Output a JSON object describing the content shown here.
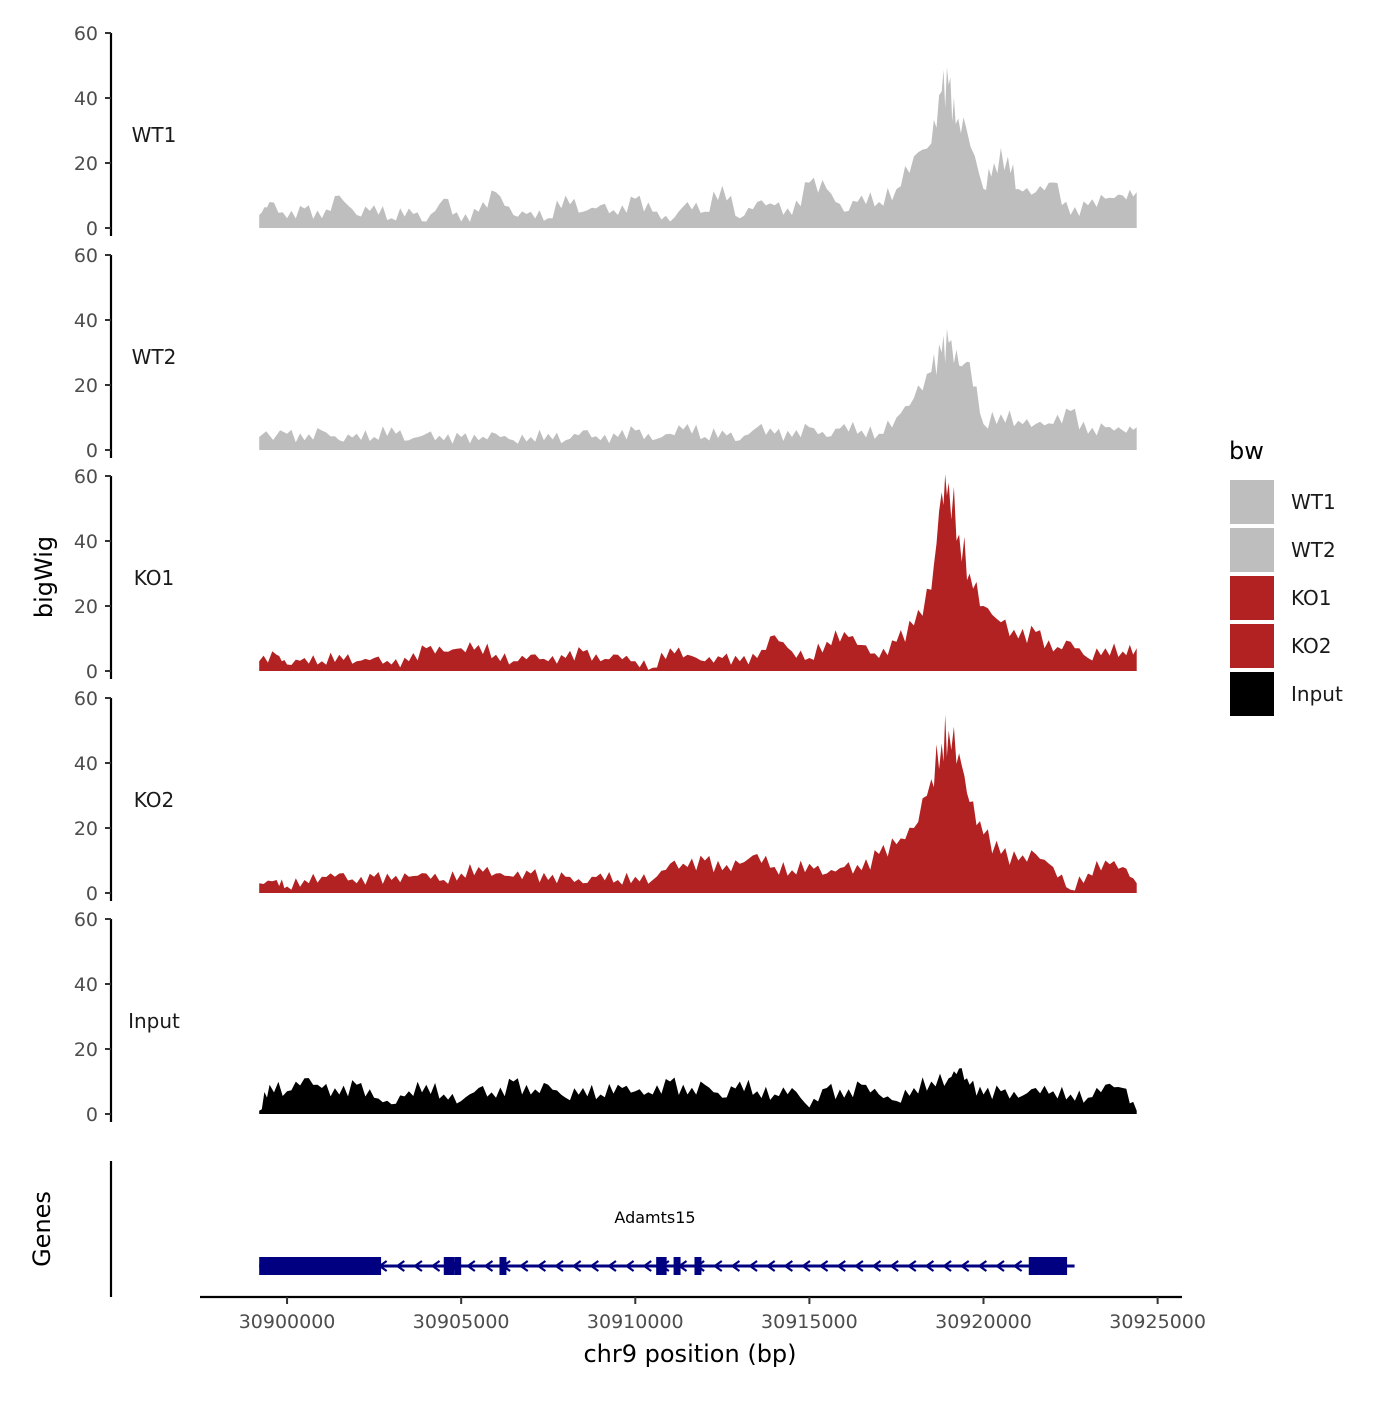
{
  "chart_data": {
    "type": "area",
    "ylabel": "bigWig",
    "gene_track_label": "Genes",
    "xlabel": "chr9 position (bp)",
    "ylim": [
      0,
      60
    ],
    "y_ticks": [
      0,
      20,
      40,
      60
    ],
    "xlim": [
      30897500,
      30925700
    ],
    "x_ticks": [
      30900000,
      30905000,
      30910000,
      30915000,
      30920000,
      30925000
    ],
    "x_tick_labels": [
      "30900000",
      "30905000",
      "30910000",
      "30915000",
      "30920000",
      "30925000"
    ],
    "legend": {
      "title": "bw",
      "position": "right",
      "items": [
        {
          "name": "WT1",
          "color": "#bebebe"
        },
        {
          "name": "WT2",
          "color": "#bebebe"
        },
        {
          "name": "KO1",
          "color": "#b22222"
        },
        {
          "name": "KO2",
          "color": "#b22222"
        },
        {
          "name": "Input",
          "color": "#000000"
        }
      ]
    },
    "series": [
      {
        "name": "WT1",
        "color": "#bebebe",
        "peak": {
          "x": 30918900,
          "y": 44
        },
        "anchors": [
          [
            30899200,
            4
          ],
          [
            30899500,
            8
          ],
          [
            30900000,
            3
          ],
          [
            30900500,
            6
          ],
          [
            30901000,
            3
          ],
          [
            30901500,
            10
          ],
          [
            30902000,
            4
          ],
          [
            30902500,
            7
          ],
          [
            30903000,
            3
          ],
          [
            30903500,
            6
          ],
          [
            30904000,
            2
          ],
          [
            30904500,
            9
          ],
          [
            30905000,
            2
          ],
          [
            30905500,
            5
          ],
          [
            30906000,
            11
          ],
          [
            30906500,
            4
          ],
          [
            30907000,
            5
          ],
          [
            30907500,
            3
          ],
          [
            30908000,
            10
          ],
          [
            30908500,
            5
          ],
          [
            30909000,
            7
          ],
          [
            30909500,
            4
          ],
          [
            30910000,
            9
          ],
          [
            30910500,
            5
          ],
          [
            30911000,
            2
          ],
          [
            30911500,
            8
          ],
          [
            30912000,
            5
          ],
          [
            30912500,
            13
          ],
          [
            30913000,
            3
          ],
          [
            30913500,
            8
          ],
          [
            30914000,
            7
          ],
          [
            30914500,
            4
          ],
          [
            30915000,
            14
          ],
          [
            30915500,
            12
          ],
          [
            30916000,
            5
          ],
          [
            30916500,
            10
          ],
          [
            30917000,
            8
          ],
          [
            30917500,
            12
          ],
          [
            30918000,
            22
          ],
          [
            30918500,
            26
          ],
          [
            30918800,
            42
          ],
          [
            30919000,
            44
          ],
          [
            30919200,
            32
          ],
          [
            30919500,
            31
          ],
          [
            30920000,
            12
          ],
          [
            30920300,
            20
          ],
          [
            30920700,
            22
          ],
          [
            30921000,
            12
          ],
          [
            30921500,
            11
          ],
          [
            30922000,
            14
          ],
          [
            30922500,
            4
          ],
          [
            30923000,
            7
          ],
          [
            30923500,
            9
          ],
          [
            30924000,
            10
          ],
          [
            30924400,
            11
          ]
        ]
      },
      {
        "name": "WT2",
        "color": "#bebebe",
        "peak": {
          "x": 30918900,
          "y": 33
        },
        "anchors": [
          [
            30899200,
            4
          ],
          [
            30900000,
            5
          ],
          [
            30900500,
            3
          ],
          [
            30901000,
            6
          ],
          [
            30901500,
            3
          ],
          [
            30902000,
            5
          ],
          [
            30902500,
            4
          ],
          [
            30903000,
            7
          ],
          [
            30903500,
            3
          ],
          [
            30904000,
            5
          ],
          [
            30904500,
            3
          ],
          [
            30905000,
            4
          ],
          [
            30905500,
            3
          ],
          [
            30906000,
            5
          ],
          [
            30906500,
            3
          ],
          [
            30907000,
            4
          ],
          [
            30907500,
            5
          ],
          [
            30908000,
            3
          ],
          [
            30908500,
            6
          ],
          [
            30909000,
            3
          ],
          [
            30909500,
            4
          ],
          [
            30910000,
            6
          ],
          [
            30910500,
            3
          ],
          [
            30911000,
            5
          ],
          [
            30911500,
            8
          ],
          [
            30912000,
            4
          ],
          [
            30912500,
            6
          ],
          [
            30913000,
            3
          ],
          [
            30913500,
            7
          ],
          [
            30914000,
            5
          ],
          [
            30914500,
            4
          ],
          [
            30915000,
            7
          ],
          [
            30915500,
            4
          ],
          [
            30916000,
            8
          ],
          [
            30916500,
            6
          ],
          [
            30917000,
            5
          ],
          [
            30917500,
            10
          ],
          [
            30918000,
            16
          ],
          [
            30918500,
            24
          ],
          [
            30918800,
            30
          ],
          [
            30919000,
            33
          ],
          [
            30919300,
            26
          ],
          [
            30919600,
            27
          ],
          [
            30920000,
            8
          ],
          [
            30920500,
            11
          ],
          [
            30921000,
            9
          ],
          [
            30921500,
            8
          ],
          [
            30922000,
            8
          ],
          [
            30922500,
            12
          ],
          [
            30923000,
            5
          ],
          [
            30923500,
            7
          ],
          [
            30924000,
            6
          ],
          [
            30924400,
            7
          ]
        ]
      },
      {
        "name": "KO1",
        "color": "#b22222",
        "peak": {
          "x": 30918900,
          "y": 58
        },
        "anchors": [
          [
            30899200,
            3
          ],
          [
            30899700,
            5
          ],
          [
            30900000,
            2
          ],
          [
            30900500,
            4
          ],
          [
            30901000,
            3
          ],
          [
            30901500,
            5
          ],
          [
            30902000,
            3
          ],
          [
            30902500,
            4
          ],
          [
            30903000,
            2
          ],
          [
            30903500,
            3
          ],
          [
            30904000,
            7
          ],
          [
            30904500,
            6
          ],
          [
            30905000,
            7
          ],
          [
            30905500,
            8
          ],
          [
            30906000,
            5
          ],
          [
            30906500,
            3
          ],
          [
            30907000,
            5
          ],
          [
            30907500,
            3
          ],
          [
            30908000,
            4
          ],
          [
            30908500,
            6
          ],
          [
            30909000,
            3
          ],
          [
            30909500,
            5
          ],
          [
            30910000,
            3
          ],
          [
            30910500,
            1
          ],
          [
            30911000,
            7
          ],
          [
            30911500,
            5
          ],
          [
            30912000,
            3
          ],
          [
            30912500,
            4
          ],
          [
            30913000,
            3
          ],
          [
            30913500,
            4
          ],
          [
            30914000,
            11
          ],
          [
            30914500,
            6
          ],
          [
            30915000,
            4
          ],
          [
            30915500,
            9
          ],
          [
            30916000,
            12
          ],
          [
            30916500,
            8
          ],
          [
            30917000,
            4
          ],
          [
            30917500,
            9
          ],
          [
            30918000,
            14
          ],
          [
            30918500,
            25
          ],
          [
            30918800,
            55
          ],
          [
            30919000,
            58
          ],
          [
            30919300,
            42
          ],
          [
            30919600,
            30
          ],
          [
            30920000,
            20
          ],
          [
            30920500,
            15
          ],
          [
            30921000,
            10
          ],
          [
            30921500,
            12
          ],
          [
            30922000,
            6
          ],
          [
            30922500,
            9
          ],
          [
            30923000,
            4
          ],
          [
            30923500,
            7
          ],
          [
            30924000,
            6
          ],
          [
            30924400,
            7
          ]
        ]
      },
      {
        "name": "KO2",
        "color": "#b22222",
        "peak": {
          "x": 30918900,
          "y": 50
        },
        "anchors": [
          [
            30899200,
            3
          ],
          [
            30899700,
            4
          ],
          [
            30900000,
            2
          ],
          [
            30900500,
            4
          ],
          [
            30901000,
            5
          ],
          [
            30901500,
            6
          ],
          [
            30902000,
            3
          ],
          [
            30902500,
            5
          ],
          [
            30903000,
            4
          ],
          [
            30903500,
            5
          ],
          [
            30904000,
            6
          ],
          [
            30904500,
            4
          ],
          [
            30905000,
            6
          ],
          [
            30905500,
            8
          ],
          [
            30906000,
            6
          ],
          [
            30906500,
            5
          ],
          [
            30907000,
            6
          ],
          [
            30907500,
            4
          ],
          [
            30908000,
            5
          ],
          [
            30908500,
            3
          ],
          [
            30909000,
            6
          ],
          [
            30909500,
            4
          ],
          [
            30910000,
            5
          ],
          [
            30910500,
            4
          ],
          [
            30911000,
            9
          ],
          [
            30911500,
            8
          ],
          [
            30912000,
            10
          ],
          [
            30912500,
            7
          ],
          [
            30913000,
            9
          ],
          [
            30913500,
            12
          ],
          [
            30914000,
            8
          ],
          [
            30914500,
            7
          ],
          [
            30915000,
            9
          ],
          [
            30915500,
            6
          ],
          [
            30916000,
            8
          ],
          [
            30916500,
            7
          ],
          [
            30917000,
            12
          ],
          [
            30917500,
            15
          ],
          [
            30918000,
            20
          ],
          [
            30918500,
            35
          ],
          [
            30918800,
            46
          ],
          [
            30919000,
            50
          ],
          [
            30919300,
            43
          ],
          [
            30919600,
            28
          ],
          [
            30920000,
            18
          ],
          [
            30920500,
            12
          ],
          [
            30921000,
            10
          ],
          [
            30921500,
            12
          ],
          [
            30922000,
            8
          ],
          [
            30922500,
            1
          ],
          [
            30923000,
            6
          ],
          [
            30923500,
            10
          ],
          [
            30924000,
            8
          ],
          [
            30924400,
            3
          ]
        ]
      },
      {
        "name": "Input",
        "color": "#000000",
        "peak": {
          "x": 30919300,
          "y": 14
        },
        "anchors": [
          [
            30899200,
            1
          ],
          [
            30899500,
            9
          ],
          [
            30900000,
            7
          ],
          [
            30900500,
            11
          ],
          [
            30901000,
            8
          ],
          [
            30901500,
            6
          ],
          [
            30902000,
            9
          ],
          [
            30902500,
            5
          ],
          [
            30903000,
            3
          ],
          [
            30903500,
            7
          ],
          [
            30904000,
            9
          ],
          [
            30904500,
            6
          ],
          [
            30905000,
            4
          ],
          [
            30905500,
            8
          ],
          [
            30906000,
            5
          ],
          [
            30906500,
            10
          ],
          [
            30907000,
            6
          ],
          [
            30907500,
            9
          ],
          [
            30908000,
            5
          ],
          [
            30908500,
            8
          ],
          [
            30909000,
            6
          ],
          [
            30909500,
            9
          ],
          [
            30910000,
            7
          ],
          [
            30910500,
            6
          ],
          [
            30911000,
            10
          ],
          [
            30911500,
            6
          ],
          [
            30912000,
            9
          ],
          [
            30912500,
            5
          ],
          [
            30913000,
            10
          ],
          [
            30913500,
            7
          ],
          [
            30914000,
            6
          ],
          [
            30914500,
            8
          ],
          [
            30915000,
            2
          ],
          [
            30915500,
            8
          ],
          [
            30916000,
            5
          ],
          [
            30916500,
            9
          ],
          [
            30917000,
            6
          ],
          [
            30917500,
            4
          ],
          [
            30918000,
            8
          ],
          [
            30918500,
            10
          ],
          [
            30919000,
            11
          ],
          [
            30919300,
            14
          ],
          [
            30919600,
            9
          ],
          [
            30920000,
            6
          ],
          [
            30920500,
            7
          ],
          [
            30921000,
            5
          ],
          [
            30921500,
            8
          ],
          [
            30922000,
            7
          ],
          [
            30922500,
            6
          ],
          [
            30923000,
            5
          ],
          [
            30923500,
            9
          ],
          [
            30924000,
            8
          ],
          [
            30924400,
            1
          ]
        ]
      }
    ],
    "gene": {
      "name": "Adamts15",
      "color": "#000080",
      "strand": "-",
      "start": 30899200,
      "end": 30922500,
      "exons": [
        [
          30899200,
          30902700
        ],
        [
          30904500,
          30904800
        ],
        [
          30904800,
          30905000
        ],
        [
          30906100,
          30906300
        ],
        [
          30910600,
          30910900
        ],
        [
          30911100,
          30911300
        ],
        [
          30911700,
          30911900
        ],
        [
          30921300,
          30922400
        ]
      ]
    }
  }
}
